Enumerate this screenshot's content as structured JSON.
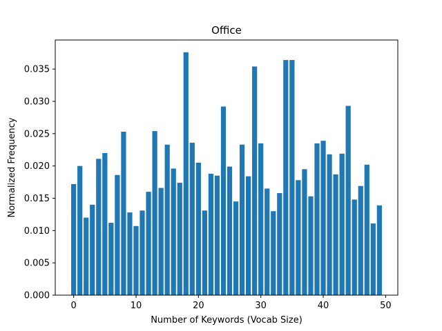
{
  "chart_data": {
    "type": "bar",
    "title": "Office",
    "xlabel": "Number of Keywords (Vocab Size)",
    "ylabel": "Normalized Frequency",
    "x": [
      0,
      1,
      2,
      3,
      4,
      5,
      6,
      7,
      8,
      9,
      10,
      11,
      12,
      13,
      14,
      15,
      16,
      17,
      18,
      19,
      20,
      21,
      22,
      23,
      24,
      25,
      26,
      27,
      28,
      29,
      30,
      31,
      32,
      33,
      34,
      35,
      36,
      37,
      38,
      39,
      40,
      41,
      42,
      43,
      44,
      45,
      46,
      47,
      48,
      49
    ],
    "values": [
      0.0172,
      0.02,
      0.012,
      0.014,
      0.0211,
      0.022,
      0.0112,
      0.0186,
      0.0253,
      0.0128,
      0.0107,
      0.0131,
      0.016,
      0.0254,
      0.0166,
      0.0233,
      0.0196,
      0.0174,
      0.0376,
      0.0236,
      0.0205,
      0.0131,
      0.0188,
      0.0185,
      0.0292,
      0.0199,
      0.0145,
      0.0233,
      0.0184,
      0.0354,
      0.0235,
      0.0165,
      0.013,
      0.0158,
      0.0364,
      0.0364,
      0.0178,
      0.0195,
      0.0153,
      0.0235,
      0.0239,
      0.0218,
      0.0187,
      0.0219,
      0.0293,
      0.0148,
      0.0169,
      0.0202,
      0.0111,
      0.0139
    ],
    "xlim": [
      -2.95,
      51.95
    ],
    "ylim": [
      0,
      0.0395
    ],
    "xticks": [
      0,
      10,
      20,
      30,
      40,
      50
    ],
    "xtick_labels": [
      "0",
      "10",
      "20",
      "30",
      "40",
      "50"
    ],
    "yticks": [
      0,
      0.005,
      0.01,
      0.015,
      0.02,
      0.025,
      0.03,
      0.035
    ],
    "ytick_labels": [
      "0.000",
      "0.005",
      "0.010",
      "0.015",
      "0.020",
      "0.025",
      "0.030",
      "0.035"
    ],
    "bar_color": "#1f77b4",
    "grid": false,
    "legend": false
  }
}
